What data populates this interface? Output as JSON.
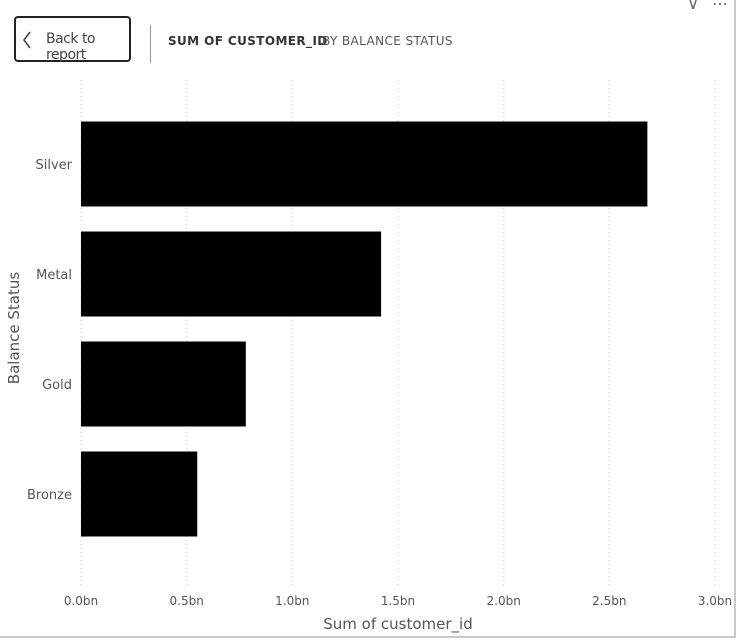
{
  "header": {
    "back_label": "Back to report",
    "breadcrumb": [
      "SUM OF CUSTOMER_ID",
      "BY BALANCE STATUS"
    ],
    "top_icons": [
      "filter-icon",
      "more-options-icon"
    ]
  },
  "chart_data": {
    "type": "bar",
    "orientation": "horizontal",
    "categories": [
      "Silver",
      "Metal",
      "Gold",
      "Bronze"
    ],
    "values": [
      2.68,
      1.42,
      0.78,
      0.55
    ],
    "value_unit": "bn",
    "xlabel": "Sum of customer_id",
    "ylabel": "Balance Status",
    "xlim": [
      0,
      3.0
    ],
    "xticks": [
      "0.0bn",
      "0.5bn",
      "1.0bn",
      "1.5bn",
      "2.0bn",
      "2.5bn",
      "3.0bn"
    ],
    "xtick_values": [
      0,
      0.5,
      1.0,
      1.5,
      2.0,
      2.5,
      3.0
    ],
    "grid": "vertical dotted",
    "bar_color": "#000000"
  }
}
